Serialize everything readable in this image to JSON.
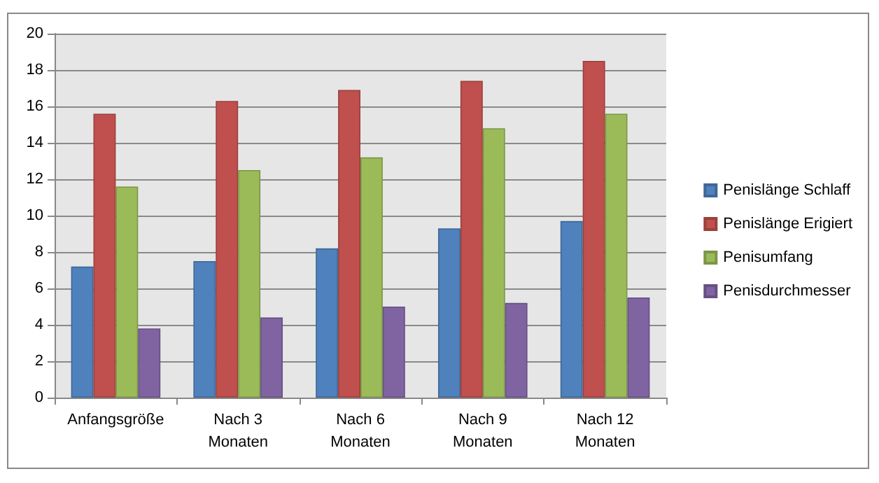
{
  "chart_data": {
    "type": "bar",
    "categories": [
      "Anfangsgröße",
      "Nach 3 Monaten",
      "Nach 6 Monaten",
      "Nach 9 Monaten",
      "Nach 12 Monaten"
    ],
    "series": [
      {
        "name": "Penislänge Schlaff",
        "color": "#4f81bd",
        "values": [
          7.2,
          7.5,
          8.2,
          9.3,
          9.7
        ]
      },
      {
        "name": "Penislänge Erigiert",
        "color": "#c0504d",
        "values": [
          15.6,
          16.3,
          16.9,
          17.4,
          18.5
        ]
      },
      {
        "name": "Penisumfang",
        "color": "#9bbb59",
        "values": [
          11.6,
          12.5,
          13.2,
          14.8,
          15.6
        ]
      },
      {
        "name": "Penisdurchmesser",
        "color": "#8064a2",
        "values": [
          3.8,
          4.4,
          5.0,
          5.2,
          5.5
        ]
      }
    ],
    "ylim": [
      0,
      20
    ],
    "yticks": [
      0,
      2,
      4,
      6,
      8,
      10,
      12,
      14,
      16,
      18,
      20
    ],
    "grid": "y",
    "legend": "right"
  }
}
